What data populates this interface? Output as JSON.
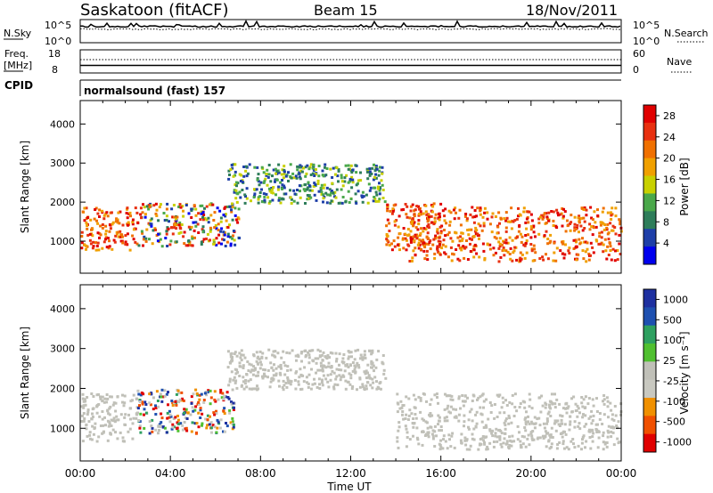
{
  "header": {
    "station": "Saskatoon (fitACF)",
    "beam": "Beam 15",
    "date": "18/Nov/2011"
  },
  "noise_panel": {
    "left_label": "N.Sky",
    "left_ticks": [
      "10^5",
      "10^0"
    ],
    "right_ticks": [
      "10^5",
      "10^0"
    ],
    "right_label": "N.Search"
  },
  "freq_panel": {
    "left_label_1": "Freq.",
    "left_label_2": "[MHz]",
    "left_ticks": [
      "18",
      "8"
    ],
    "right_ticks": [
      "60",
      "0"
    ],
    "right_label": "Nave"
  },
  "cpid": {
    "label": "CPID",
    "value": "normalsound (fast) 157"
  },
  "colors": {
    "power_scale": [
      "#0000ee",
      "#1e3fa8",
      "#2e7d5a",
      "#4aa84a",
      "#c8d000",
      "#f0a000",
      "#f07000",
      "#e83010",
      "#e00000"
    ],
    "velocity_scale": [
      "#e00000",
      "#f05000",
      "#f09000",
      "#c8c8c0",
      "#c0c0b8",
      "#50c030",
      "#2ea060",
      "#1e50b0",
      "#1e30a0"
    ],
    "ground_scatter": "#c0c0b8"
  },
  "chart_data": [
    {
      "type": "heatmap",
      "title": "",
      "xlabel": "",
      "ylabel": "Slant Range [km]",
      "xlim": [
        "00:00",
        "24:00"
      ],
      "ylim": [
        180,
        4600
      ],
      "x_ticks": [
        "00:00",
        "04:00",
        "08:00",
        "12:00",
        "16:00",
        "20:00",
        "00:00"
      ],
      "y_ticks": [
        1000,
        2000,
        3000,
        4000
      ],
      "colorbar": {
        "label": "Power [dB]",
        "ticks": [
          4,
          8,
          12,
          16,
          20,
          24,
          28
        ],
        "range": [
          0,
          30
        ]
      },
      "echo_regions": [
        {
          "t_start": 0.0,
          "t_end": 2.5,
          "range_low": 800,
          "range_high": 1900,
          "level": "high"
        },
        {
          "t_start": 2.5,
          "t_end": 7.0,
          "range_low": 900,
          "range_high": 2000,
          "level": "mixed"
        },
        {
          "t_start": 6.5,
          "t_end": 13.5,
          "range_low": 2000,
          "range_high": 3000,
          "level": "medium"
        },
        {
          "t_start": 13.5,
          "t_end": 16.0,
          "range_low": 800,
          "range_high": 2000,
          "level": "high"
        },
        {
          "t_start": 14.5,
          "t_end": 24.0,
          "range_low": 500,
          "range_high": 1900,
          "level": "high"
        }
      ]
    },
    {
      "type": "heatmap",
      "title": "",
      "xlabel": "Time UT",
      "ylabel": "Slant Range [km]",
      "xlim": [
        "00:00",
        "24:00"
      ],
      "ylim": [
        180,
        4600
      ],
      "x_ticks": [
        "00:00",
        "04:00",
        "08:00",
        "12:00",
        "16:00",
        "20:00",
        "00:00"
      ],
      "y_ticks": [
        1000,
        2000,
        3000,
        4000
      ],
      "colorbar": {
        "label": "Velocity [m s⁻¹]",
        "ticks": [
          "1000",
          "500",
          "100",
          "25",
          "-25",
          "-100",
          "-500",
          "-1000"
        ]
      },
      "echo_regions": [
        {
          "t_start": 0.0,
          "t_end": 2.5,
          "range_low": 700,
          "range_high": 1900,
          "class": "ground"
        },
        {
          "t_start": 2.5,
          "t_end": 6.8,
          "range_low": 900,
          "range_high": 2000,
          "class": "mixed-velocity"
        },
        {
          "t_start": 6.5,
          "t_end": 13.5,
          "range_low": 2000,
          "range_high": 3000,
          "class": "ground"
        },
        {
          "t_start": 14.0,
          "t_end": 24.0,
          "range_low": 500,
          "range_high": 1900,
          "class": "ground"
        }
      ]
    }
  ]
}
